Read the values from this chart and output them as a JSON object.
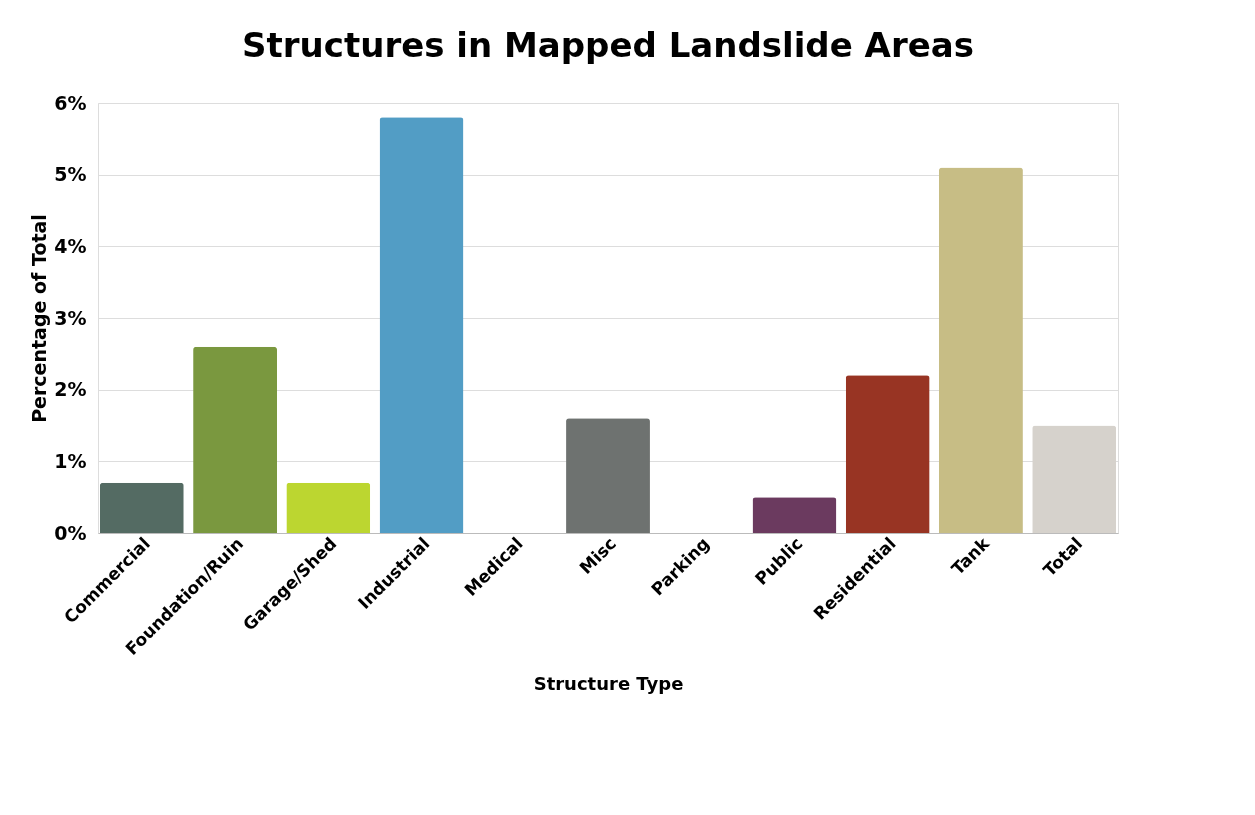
{
  "chart_data": {
    "type": "bar",
    "title": "Structures in Mapped Landslide Areas",
    "xlabel": "Structure Type",
    "ylabel": "Percentage of Total",
    "categories": [
      "Commercial",
      "Foundation/Ruin",
      "Garage/Shed",
      "Industrial",
      "Medical",
      "Misc",
      "Parking",
      "Public",
      "Residential",
      "Tank",
      "Total"
    ],
    "values": [
      0.7,
      2.6,
      0.7,
      5.8,
      0,
      1.6,
      0,
      0.5,
      2.2,
      5.1,
      1.5
    ],
    "colors": [
      "#546b63",
      "#7a983f",
      "#bcd630",
      "#529dc5",
      "#888888",
      "#6e7270",
      "#888888",
      "#6b3a5f",
      "#983423",
      "#c7bd85",
      "#d6d2cc"
    ],
    "ylim": [
      0,
      6
    ],
    "yticks": [
      {
        "value": 0,
        "label": "0%"
      },
      {
        "value": 1,
        "label": "1%"
      },
      {
        "value": 2,
        "label": "2%"
      },
      {
        "value": 3,
        "label": "3%"
      },
      {
        "value": 4,
        "label": "4%"
      },
      {
        "value": 5,
        "label": "5%"
      },
      {
        "value": 6,
        "label": "6%"
      }
    ],
    "grid": "y",
    "legend": false
  }
}
